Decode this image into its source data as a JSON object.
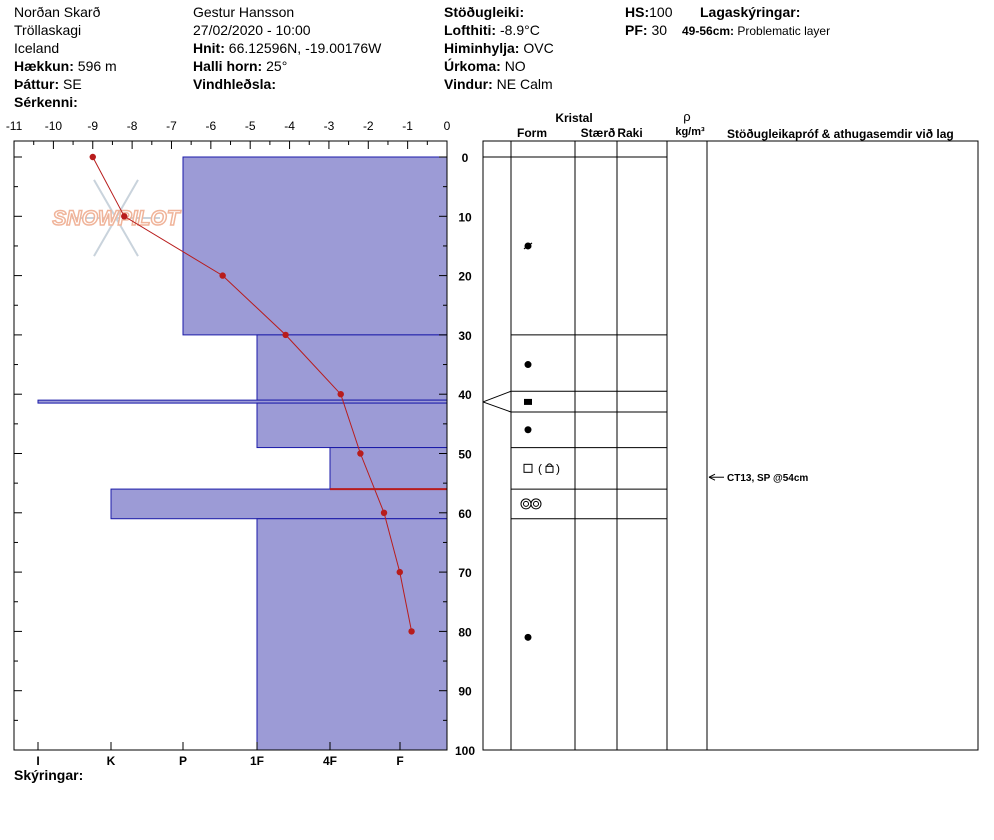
{
  "header": {
    "location": "Norðan Skarð",
    "region": "Tröllaskagi",
    "country": "Iceland",
    "elevation_label": "Hækkun:",
    "elevation_value": "596 m",
    "aspect_label": "Þáttur:",
    "aspect_value": "SE",
    "features_label": "Sérkenni:",
    "observer": "Gestur Hansson",
    "datetime": "27/02/2020 - 10:00",
    "coords_label": "Hnit:",
    "coords_value": "66.12596N, -19.00176W",
    "slope_label": "Halli horn:",
    "slope_value": "25°",
    "wind_loading_label": "Vindhleðsla:",
    "stability_label": "Stöðugleiki:",
    "air_temp_label": "Lofthiti:",
    "air_temp_value": "-8.9°C",
    "sky_label": "Himinhylja:",
    "sky_value": "OVC",
    "precip_label": "Úrkoma:",
    "precip_value": "NO",
    "wind_label": "Vindur:",
    "wind_value": "NE Calm",
    "hs_label": "HS:",
    "hs_value": "100",
    "pf_label": "PF:",
    "pf_value": "30",
    "layer_notes_label": "Lagaskýringar:",
    "layer_note_range": "49-56cm:",
    "layer_note_text": "Problematic layer",
    "legend_label": "Skýringar:"
  },
  "logo_text": "SNOWPILOT",
  "columns": {
    "crystal": "Kristal",
    "form": "Form",
    "size": "Stærð",
    "moisture": "Raki",
    "rho": "ρ",
    "density_unit": "kg/m³",
    "tests": "Stöðugleikapróf & athugasemdir við lag"
  },
  "test_annotation": "CT13, SP @54cm",
  "colors": {
    "hardness_fill": "#9c9bd6",
    "hardness_stroke": "#1a1aa8",
    "temp_line": "#b81c1c",
    "problem_line": "#b81c1c",
    "logo": "#f0b49a"
  },
  "chart_data": {
    "type": "snow_profile",
    "temperature_axis": {
      "ticks": [
        "-11",
        "-10",
        "-9",
        "-8",
        "-7",
        "-6",
        "-5",
        "-4",
        "-3",
        "-2",
        "-1",
        "0"
      ],
      "range": [
        -11,
        0
      ]
    },
    "depth_axis": {
      "ticks": [
        "0",
        "10",
        "20",
        "30",
        "40",
        "50",
        "60",
        "70",
        "80",
        "90",
        "100"
      ],
      "range": [
        0,
        100
      ]
    },
    "hardness_axis": {
      "ticks": [
        "I",
        "K",
        "P",
        "1F",
        "4F",
        "F"
      ]
    },
    "temperature_profile": [
      {
        "depth": 0,
        "temp": -9.0
      },
      {
        "depth": 10,
        "temp": -8.2
      },
      {
        "depth": 20,
        "temp": -5.7
      },
      {
        "depth": 30,
        "temp": -4.1
      },
      {
        "depth": 40,
        "temp": -2.7
      },
      {
        "depth": 50,
        "temp": -2.2
      },
      {
        "depth": 60,
        "temp": -1.6
      },
      {
        "depth": 70,
        "temp": -1.2
      },
      {
        "depth": 80,
        "temp": -0.9
      }
    ],
    "layers": [
      {
        "top": 0,
        "bottom": 30,
        "hardness": "P"
      },
      {
        "top": 30,
        "bottom": 41,
        "hardness": "1F"
      },
      {
        "top": 41,
        "bottom": 41.5,
        "hardness": "I"
      },
      {
        "top": 41.5,
        "bottom": 49,
        "hardness": "1F"
      },
      {
        "top": 49,
        "bottom": 56,
        "hardness": "4F"
      },
      {
        "top": 56,
        "bottom": 61,
        "hardness": "K"
      },
      {
        "top": 61,
        "bottom": 100,
        "hardness": "1F"
      }
    ],
    "problem_layer_depth": 56,
    "crystal_forms": [
      {
        "depth": 15,
        "form": "DF"
      },
      {
        "depth": 35,
        "form": "RG"
      },
      {
        "depth": 41.3,
        "form": "MF"
      },
      {
        "depth": 46,
        "form": "RG"
      },
      {
        "depth": 52.5,
        "form": "FC (FCxr)"
      },
      {
        "depth": 58.5,
        "form": "MFcr"
      },
      {
        "depth": 81,
        "form": "RG"
      }
    ],
    "test_depth": 54
  }
}
